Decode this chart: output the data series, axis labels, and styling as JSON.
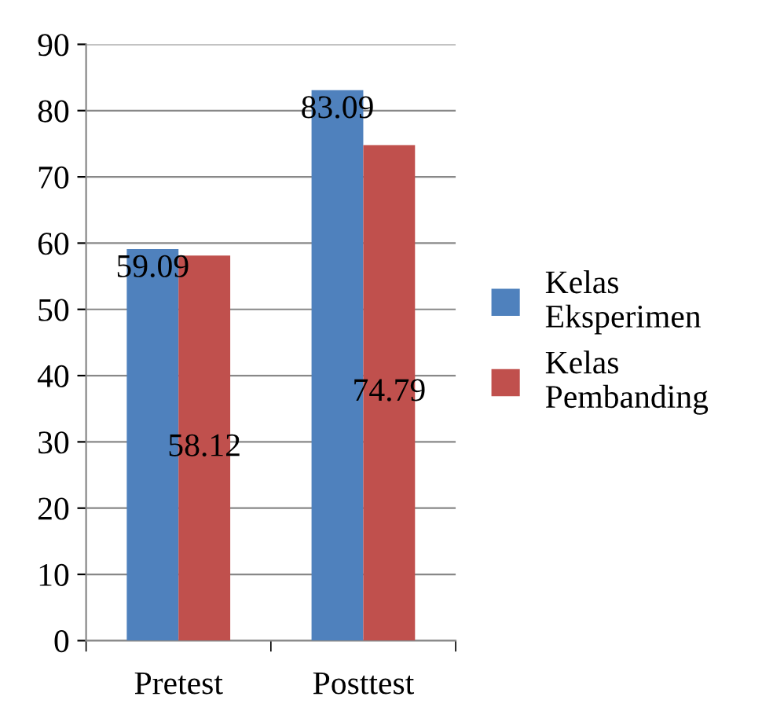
{
  "chart_data": {
    "type": "bar",
    "categories": [
      "Pretest",
      "Posttest"
    ],
    "series": [
      {
        "name": "Kelas\nEksperimen",
        "color": "#4f81bd",
        "values": [
          59.09,
          83.09
        ]
      },
      {
        "name": "Kelas\nPembanding",
        "color": "#c0504d",
        "values": [
          58.12,
          74.79
        ]
      }
    ],
    "ylim": [
      0,
      90
    ],
    "yticks": [
      0,
      10,
      20,
      30,
      40,
      50,
      60,
      70,
      80,
      90
    ],
    "grid": "y",
    "legend": "right",
    "data_labels": true
  }
}
